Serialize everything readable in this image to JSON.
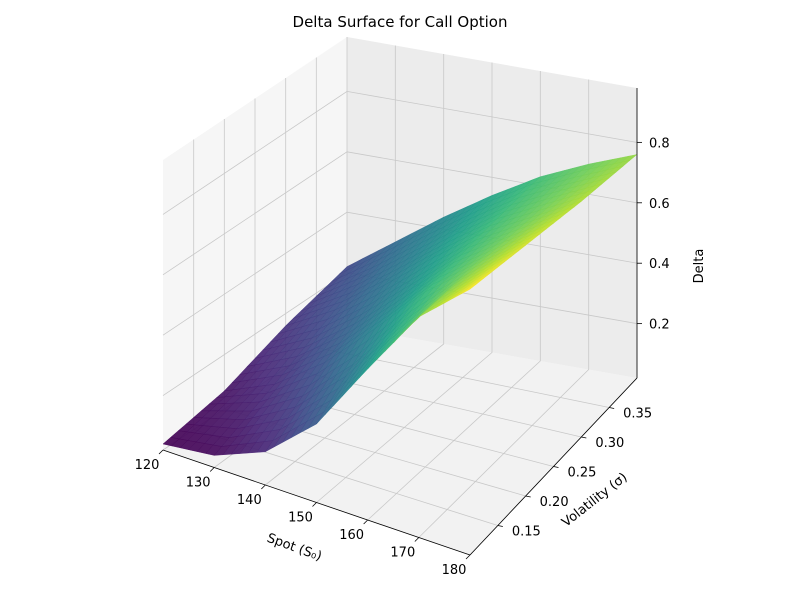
{
  "chart_data": {
    "type": "surface3d",
    "title": "Delta Surface for Call Option",
    "xlabel": "Spot (S₀)",
    "ylabel": "Volatility (σ)",
    "zlabel": "Delta",
    "x_ticks": [
      "120",
      "130",
      "140",
      "150",
      "160",
      "170",
      "180"
    ],
    "y_ticks": [
      "0.15",
      "0.20",
      "0.25",
      "0.30",
      "0.35"
    ],
    "z_ticks": [
      "0.2",
      "0.4",
      "0.6",
      "0.8"
    ],
    "xlim": [
      120,
      180
    ],
    "ylim": [
      0.1,
      0.4
    ],
    "zlim": [
      0.02,
      0.98
    ],
    "colormap": "viridis",
    "surface_grid": {
      "spot": [
        120,
        130,
        140,
        150,
        160,
        170,
        180
      ],
      "volatility": [
        0.1,
        0.2,
        0.3,
        0.4
      ],
      "delta": [
        [
          0.04,
          0.08,
          0.16,
          0.22
        ],
        [
          0.06,
          0.15,
          0.25,
          0.33
        ],
        [
          0.13,
          0.27,
          0.37,
          0.44
        ],
        [
          0.28,
          0.43,
          0.5,
          0.54
        ],
        [
          0.52,
          0.6,
          0.62,
          0.63
        ],
        [
          0.75,
          0.73,
          0.71,
          0.7
        ],
        [
          0.9,
          0.85,
          0.8,
          0.76
        ]
      ]
    },
    "grid": true,
    "pane_color": "#f2f2f2"
  }
}
